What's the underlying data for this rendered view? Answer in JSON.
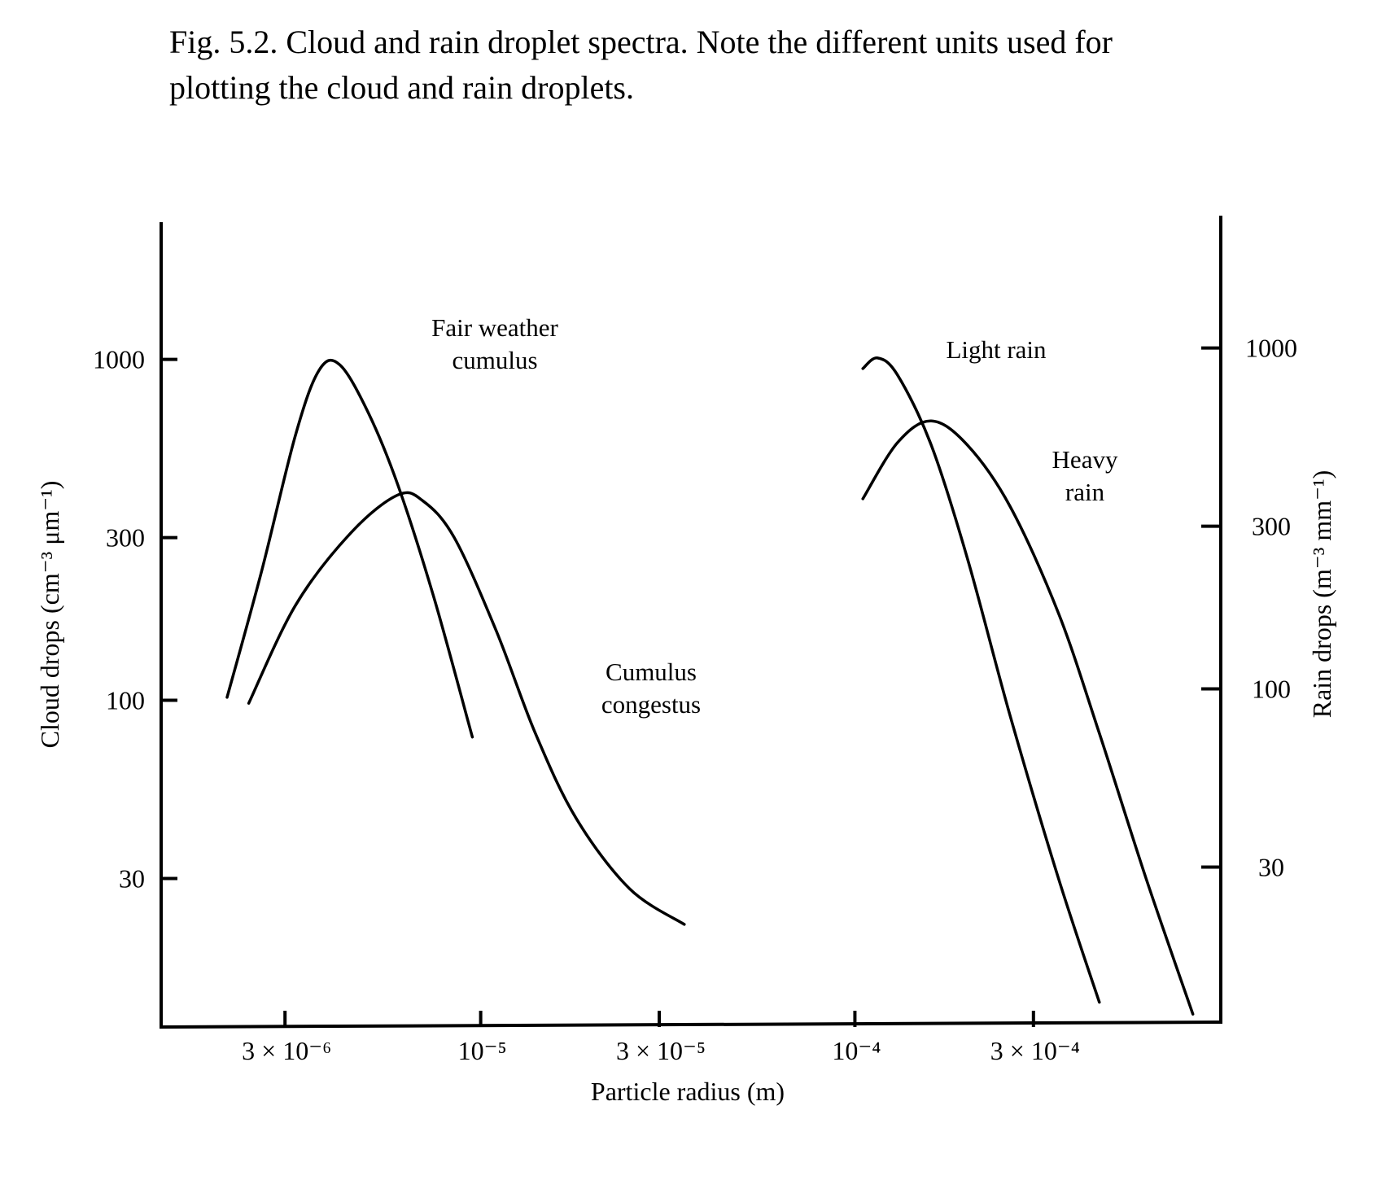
{
  "caption": {
    "line1": "Fig. 5.2. Cloud and rain droplet spectra. Note the different units used for",
    "line2": "plotting the cloud and rain droplets."
  },
  "chart_data": {
    "type": "line",
    "title": "Fig. 5.2. Cloud and rain droplet spectra.",
    "xlabel": "Particle radius (m)",
    "xscale": "log",
    "xlim": [
      1.4e-06,
      0.00095
    ],
    "x_ticks": [
      {
        "value": 3e-06,
        "label": "3 × 10⁻⁶"
      },
      {
        "value": 1e-05,
        "label": "10⁻⁵"
      },
      {
        "value": 3e-05,
        "label": "3 × 10⁻⁵"
      },
      {
        "value": 0.0001,
        "label": "10⁻⁴"
      },
      {
        "value": 0.0003,
        "label": "3 × 10⁻⁴"
      }
    ],
    "y_left": {
      "label": "Cloud drops (cm⁻³ μm⁻¹)",
      "scale": "log",
      "lim": [
        11,
        2500
      ],
      "ticks": [
        {
          "value": 1000,
          "label": "1000"
        },
        {
          "value": 300,
          "label": "300"
        },
        {
          "value": 100,
          "label": "100"
        },
        {
          "value": 30,
          "label": "30"
        }
      ]
    },
    "y_right": {
      "label": "Rain drops (m⁻³ mm⁻¹)",
      "scale": "log",
      "lim": [
        11,
        2500
      ],
      "ticks": [
        {
          "value": 1000,
          "label": "1000"
        },
        {
          "value": 300,
          "label": "300"
        },
        {
          "value": 100,
          "label": "100"
        },
        {
          "value": 30,
          "label": "30"
        }
      ]
    },
    "grid": false,
    "legend": "none (curves labeled directly)",
    "series": [
      {
        "name": "Fair weather cumulus",
        "axis": "left",
        "label_lines": [
          "Fair weather",
          "cumulus"
        ],
        "points": [
          [
            2.1e-06,
            102
          ],
          [
            2.6e-06,
            240
          ],
          [
            3.2e-06,
            600
          ],
          [
            3.7e-06,
            930
          ],
          [
            4.2e-06,
            965
          ],
          [
            5e-06,
            700
          ],
          [
            6e-06,
            430
          ],
          [
            7.5e-06,
            200
          ],
          [
            9.5e-06,
            78
          ]
        ]
      },
      {
        "name": "Cumulus congestus",
        "axis": "left",
        "label_lines": [
          "Cumulus",
          "congestus"
        ],
        "points": [
          [
            2.4e-06,
            98
          ],
          [
            3.2e-06,
            190
          ],
          [
            4.5e-06,
            310
          ],
          [
            6e-06,
            400
          ],
          [
            7e-06,
            385
          ],
          [
            8.5e-06,
            300
          ],
          [
            1.1e-05,
            160
          ],
          [
            1.4e-05,
            80
          ],
          [
            1.8e-05,
            45
          ],
          [
            2.5e-05,
            28
          ],
          [
            3.5e-05,
            22
          ]
        ]
      },
      {
        "name": "Light rain",
        "axis": "right",
        "label_lines": [
          "Light rain"
        ],
        "points": [
          [
            0.000105,
            940
          ],
          [
            0.000115,
            1010
          ],
          [
            0.00013,
            900
          ],
          [
            0.00016,
            560
          ],
          [
            0.0002,
            260
          ],
          [
            0.00026,
            90
          ],
          [
            0.00035,
            30
          ],
          [
            0.00045,
            13
          ]
        ]
      },
      {
        "name": "Heavy rain",
        "axis": "right",
        "label_lines": [
          "Heavy",
          "rain"
        ],
        "points": [
          [
            0.000105,
            390
          ],
          [
            0.00013,
            570
          ],
          [
            0.00016,
            660
          ],
          [
            0.0002,
            560
          ],
          [
            0.00026,
            370
          ],
          [
            0.00035,
            180
          ],
          [
            0.00045,
            80
          ],
          [
            0.0006,
            30
          ],
          [
            0.0008,
            12
          ]
        ]
      }
    ]
  }
}
